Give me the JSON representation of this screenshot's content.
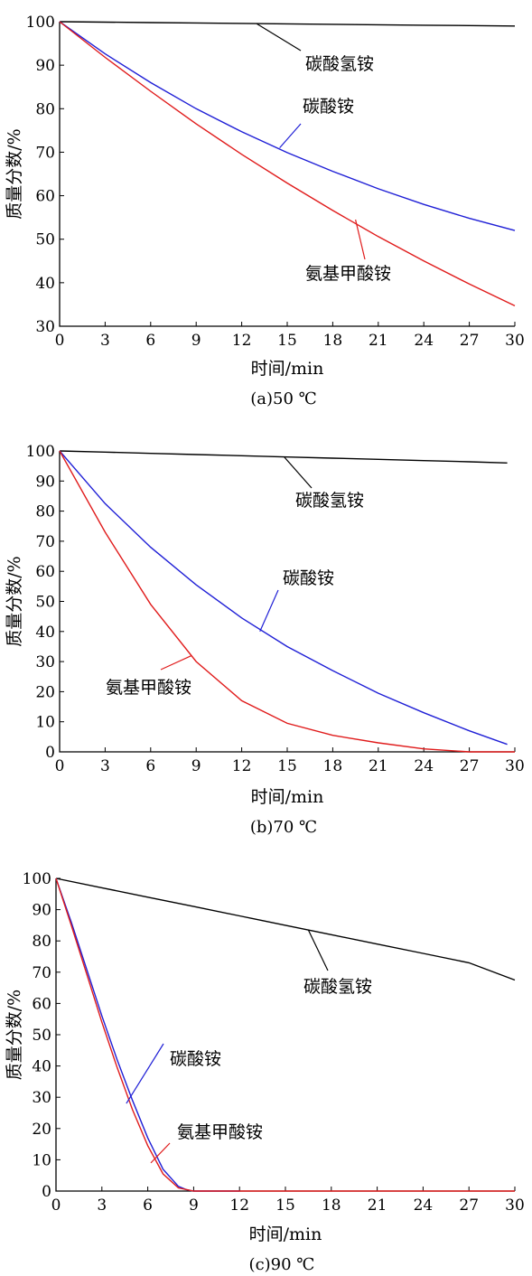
{
  "chart_data": [
    {
      "type": "line",
      "caption": "(a)50 ℃",
      "xlabel": "时间/min",
      "ylabel": "质量分数/%",
      "xlim": [
        0,
        30
      ],
      "ylim": [
        30,
        100
      ],
      "xticks": [
        0,
        3,
        6,
        9,
        12,
        15,
        18,
        21,
        24,
        27,
        30
      ],
      "yticks": [
        30,
        40,
        50,
        60,
        70,
        80,
        90,
        100
      ],
      "grid": false,
      "series": [
        {
          "name": "碳酸氢铵",
          "color": "#000000",
          "x": [
            0,
            3,
            6,
            9,
            12,
            15,
            18,
            21,
            24,
            27,
            30
          ],
          "y": [
            100,
            99.9,
            99.8,
            99.7,
            99.6,
            99.5,
            99.4,
            99.3,
            99.2,
            99.1,
            99.0
          ]
        },
        {
          "name": "碳酸铵",
          "color": "#1f1fd6",
          "x": [
            0,
            3,
            6,
            9,
            12,
            15,
            18,
            21,
            24,
            27,
            30
          ],
          "y": [
            100,
            92.6,
            86.0,
            80.0,
            74.7,
            69.9,
            65.6,
            61.6,
            58.0,
            54.8,
            52.0
          ]
        },
        {
          "name": "氨基甲酸铵",
          "color": "#e01b1b",
          "x": [
            0,
            3,
            6,
            9,
            12,
            15,
            18,
            21,
            24,
            27,
            30
          ],
          "y": [
            100,
            91.8,
            84.0,
            76.5,
            69.5,
            62.9,
            56.6,
            50.6,
            45.0,
            39.7,
            34.7
          ]
        }
      ],
      "annotations": [
        {
          "text": "碳酸氢铵",
          "series": "碳酸氢铵",
          "point_x": 13,
          "point_y": 99.5
        },
        {
          "text": "碳酸铵",
          "series": "碳酸铵",
          "point_x": 14.5,
          "point_y": 71.0
        },
        {
          "text": "氨基甲酸铵",
          "series": "氨基甲酸铵",
          "point_x": 19.5,
          "point_y": 54.5
        }
      ]
    },
    {
      "type": "line",
      "caption": "(b)70 ℃",
      "xlabel": "时间/min",
      "ylabel": "质量分数/%",
      "xlim": [
        0,
        30
      ],
      "ylim": [
        0,
        100
      ],
      "xticks": [
        0,
        3,
        6,
        9,
        12,
        15,
        18,
        21,
        24,
        27,
        30
      ],
      "yticks": [
        0,
        10,
        20,
        30,
        40,
        50,
        60,
        70,
        80,
        90,
        100
      ],
      "grid": false,
      "series": [
        {
          "name": "碳酸氢铵",
          "color": "#000000",
          "x": [
            0,
            3,
            6,
            9,
            12,
            15,
            18,
            21,
            24,
            27,
            29.5
          ],
          "y": [
            100,
            99.6,
            99.2,
            98.8,
            98.4,
            98.0,
            97.6,
            97.2,
            96.8,
            96.4,
            96.0
          ]
        },
        {
          "name": "碳酸铵",
          "color": "#1f1fd6",
          "x": [
            0,
            3,
            6,
            9,
            12,
            15,
            18,
            21,
            24,
            27,
            29.5
          ],
          "y": [
            100,
            82.5,
            68.0,
            55.5,
            44.5,
            35.0,
            27.0,
            19.5,
            13.0,
            7.0,
            2.5
          ]
        },
        {
          "name": "氨基甲酸铵",
          "color": "#e01b1b",
          "x": [
            0,
            3,
            6,
            9,
            12,
            15,
            18,
            21,
            24,
            27,
            30
          ],
          "y": [
            100,
            73.0,
            49.0,
            30.0,
            17.0,
            9.5,
            5.5,
            3.0,
            1.0,
            0,
            0
          ]
        }
      ],
      "annotations": [
        {
          "text": "碳酸氢铵",
          "series": "碳酸氢铵",
          "point_x": 14.8,
          "point_y": 98.0
        },
        {
          "text": "碳酸铵",
          "series": "碳酸铵",
          "point_x": 13.2,
          "point_y": 40.0
        },
        {
          "text": "氨基甲酸铵",
          "series": "氨基甲酸铵",
          "point_x": 8.7,
          "point_y": 32.0
        }
      ]
    },
    {
      "type": "line",
      "caption": "(c)90 ℃",
      "xlabel": "时间/min",
      "ylabel": "质量分数/%",
      "xlim": [
        0,
        30
      ],
      "ylim": [
        0,
        100
      ],
      "xticks": [
        0,
        3,
        6,
        9,
        12,
        15,
        18,
        21,
        24,
        27,
        30
      ],
      "yticks": [
        0,
        10,
        20,
        30,
        40,
        50,
        60,
        70,
        80,
        90,
        100
      ],
      "grid": false,
      "series": [
        {
          "name": "碳酸氢铵",
          "color": "#000000",
          "x": [
            0,
            3,
            6,
            9,
            12,
            15,
            18,
            21,
            24,
            27,
            30
          ],
          "y": [
            100,
            97.0,
            94.0,
            91.0,
            88.0,
            85.0,
            82.0,
            79.0,
            76.0,
            73.0,
            67.5
          ]
        },
        {
          "name": "碳酸铵",
          "color": "#1f1fd6",
          "x": [
            0,
            1,
            2,
            3,
            4,
            5,
            6,
            7,
            8,
            8.5,
            9,
            12
          ],
          "y": [
            100,
            86,
            71,
            56,
            42,
            29,
            17,
            7,
            1.5,
            0.5,
            0,
            0
          ]
        },
        {
          "name": "氨基甲酸铵",
          "color": "#e01b1b",
          "x": [
            0,
            1,
            2,
            3,
            4,
            5,
            6,
            7,
            8,
            9,
            12,
            30
          ],
          "y": [
            100,
            85,
            69.5,
            54,
            39.5,
            26,
            14.5,
            5.5,
            1.0,
            0,
            0,
            0
          ]
        }
      ],
      "annotations": [
        {
          "text": "碳酸氢铵",
          "series": "碳酸氢铵",
          "point_x": 16.5,
          "point_y": 83.5
        },
        {
          "text": "碳酸铵",
          "series": "碳酸铵",
          "point_x": 4.6,
          "point_y": 28.0
        },
        {
          "text": "氨基甲酸铵",
          "series": "氨基甲酸铵",
          "point_x": 6.2,
          "point_y": 9.0
        }
      ]
    }
  ]
}
